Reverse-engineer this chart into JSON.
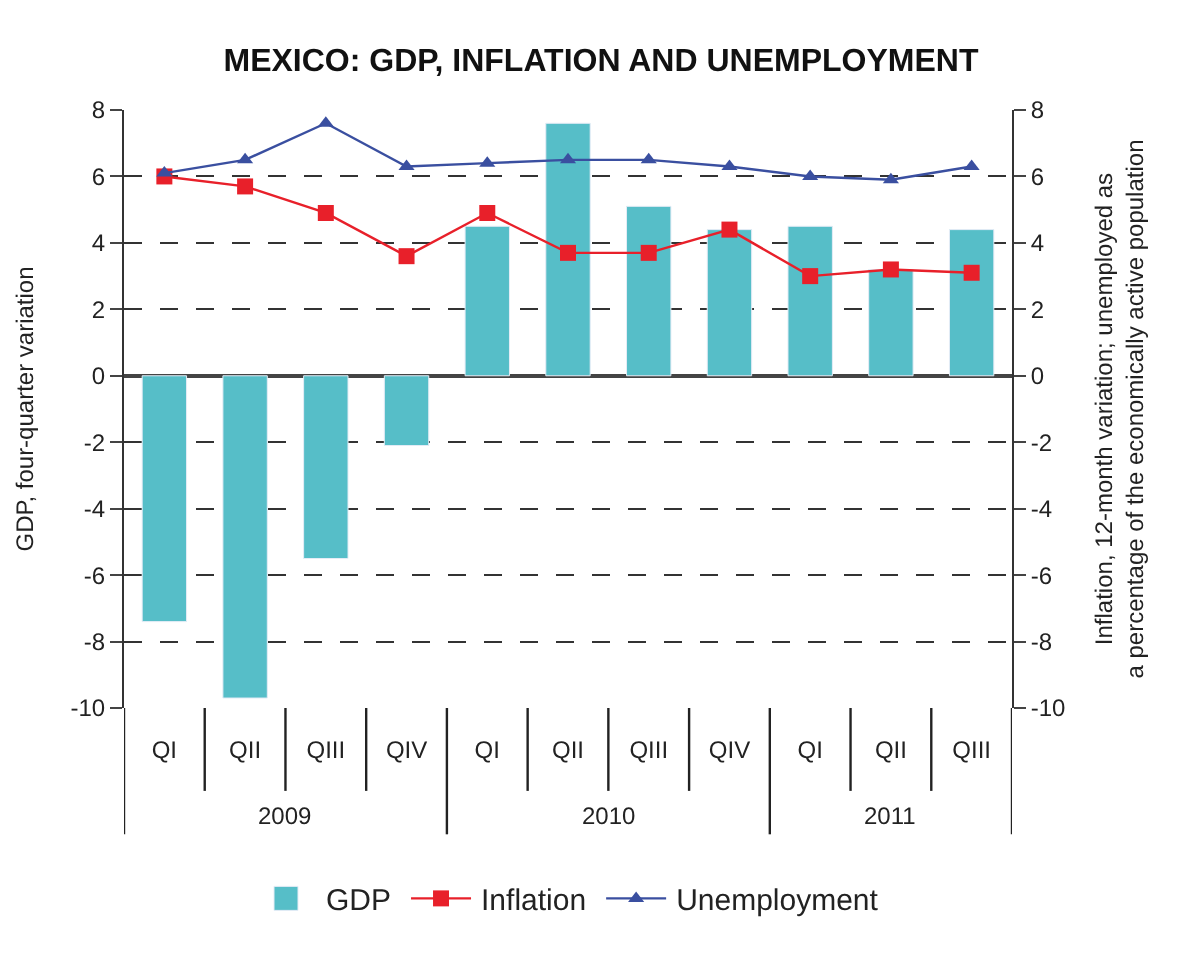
{
  "chart_data": {
    "type": "bar",
    "title": "MEXICO: GDP, INFLATION AND UNEMPLOYMENT",
    "ylabel": "GDP, four-quarter variation",
    "y2label": "Inflation, 12-month variation; unemployed as\na percentage of the economically active population",
    "categories": [
      "QI",
      "QII",
      "QIII",
      "QIV",
      "QI",
      "QII",
      "QIII",
      "QIV",
      "QI",
      "QII",
      "QIII"
    ],
    "annotations": [
      "2009",
      "2010",
      "2011"
    ],
    "series": [
      {
        "name": "GDP",
        "color": "#56bec8",
        "values": [
          -7.4,
          -9.7,
          -5.5,
          -2.1,
          4.5,
          7.6,
          5.1,
          4.4,
          4.5,
          3.2,
          4.4
        ]
      },
      {
        "name": "Inflation",
        "type": "line",
        "axis": "y2",
        "marker": "square",
        "color": "#e8202a",
        "values": [
          6.0,
          5.7,
          4.9,
          3.6,
          4.9,
          3.7,
          3.7,
          4.4,
          3.0,
          3.2,
          3.1
        ]
      },
      {
        "name": "Unemployment",
        "type": "line",
        "axis": "y2",
        "marker": "triangle",
        "color": "#3a4fa0",
        "values": [
          6.1,
          6.5,
          7.6,
          6.3,
          6.4,
          6.5,
          6.5,
          6.3,
          6.0,
          5.9,
          6.3
        ]
      }
    ],
    "ylim": [
      -10,
      8
    ],
    "yticks": [
      -10,
      -8,
      -6,
      -4,
      -2,
      0,
      2,
      4,
      6,
      8
    ],
    "y2lim": [
      -10,
      8
    ],
    "y2ticks": [
      -10,
      -8,
      -6,
      -4,
      -2,
      0,
      2,
      4,
      6,
      8
    ],
    "grid": "y",
    "legend": "bottom"
  }
}
